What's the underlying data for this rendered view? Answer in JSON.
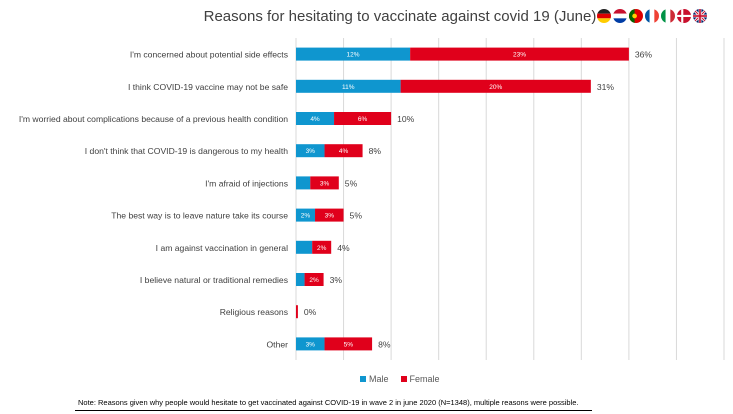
{
  "chart_data": {
    "type": "bar",
    "orientation": "horizontal",
    "stacked": true,
    "title": "Reasons for hesitating to vaccinate against covid 19 (June)",
    "categories": [
      "I'm concerned about potential side effects",
      "I think COVID-19 vaccine may not be safe",
      "I'm worried about complications because of a previous health condition",
      "I don't think that COVID-19 is dangerous to my health",
      "I'm afraid of injections",
      "The best way is to leave nature take its course",
      "I am against vaccination in general",
      "I believe natural or traditional remedies",
      "Religious reasons",
      "Other"
    ],
    "series": [
      {
        "name": "Male",
        "color": "#0f96cf",
        "values": [
          12,
          11,
          4,
          3,
          1.5,
          2,
          1.7,
          0.9,
          0,
          3
        ],
        "labels": [
          "12%",
          "11%",
          "4%",
          "3%",
          "",
          "2%",
          "",
          "",
          "",
          "3%"
        ]
      },
      {
        "name": "Female",
        "color": "#e0001b",
        "values": [
          23,
          20,
          6,
          4,
          3,
          3,
          2,
          2,
          0.2,
          5
        ],
        "labels": [
          "23%",
          "20%",
          "6%",
          "4%",
          "3%",
          "3%",
          "2%",
          "2%",
          "",
          "5%"
        ]
      }
    ],
    "totals": [
      "36%",
      "31%",
      "10%",
      "8%",
      "5%",
      "5%",
      "4%",
      "3%",
      "0%",
      "8%"
    ],
    "xlim": [
      0,
      45
    ],
    "grid": true,
    "legend_position": "bottom",
    "xlabel": "",
    "ylabel": ""
  },
  "flags": [
    "germany-flag",
    "netherlands-flag",
    "portugal-flag",
    "france-flag",
    "italy-flag",
    "denmark-flag",
    "uk-flag"
  ],
  "note": "Note: Reasons given why people would hesitate to get vaccinated against COVID-19 in wave 2 in june 2020 (N=1348), multiple reasons were possible."
}
